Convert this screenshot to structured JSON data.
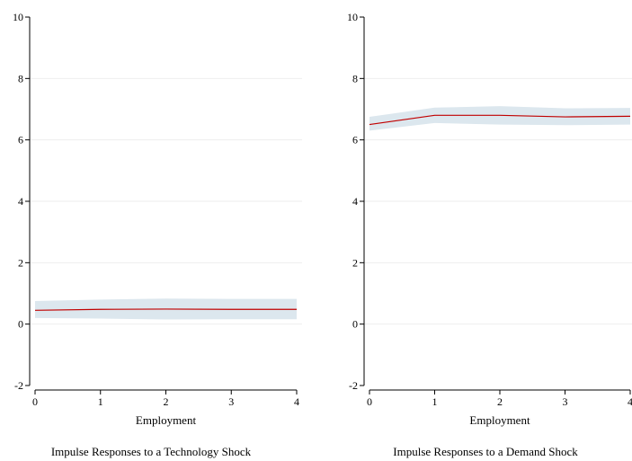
{
  "chart_data": [
    {
      "type": "line",
      "title": "Impulse Responses to a Technology Shock",
      "xlabel": "Employment",
      "ylabel": "",
      "xlim": [
        0,
        4
      ],
      "ylim": [
        -2,
        10
      ],
      "xticks": [
        "0",
        "1",
        "2",
        "3",
        "4"
      ],
      "yticks": [
        "-2",
        "0",
        "2",
        "4",
        "6",
        "8",
        "10"
      ],
      "grid": true,
      "x": [
        0,
        1,
        2,
        3,
        4
      ],
      "series": [
        {
          "name": "",
          "values": [
            0.45,
            0.48,
            0.49,
            0.48,
            0.48
          ],
          "lower": [
            0.2,
            0.18,
            0.15,
            0.16,
            0.16
          ],
          "upper": [
            0.75,
            0.8,
            0.83,
            0.82,
            0.82
          ],
          "color": "#c00000",
          "band_color": "#dce7ee"
        }
      ]
    },
    {
      "type": "line",
      "title": "Impulse Responses to a Demand Shock",
      "xlabel": "Employment",
      "ylabel": "",
      "xlim": [
        0,
        4
      ],
      "ylim": [
        -2,
        10
      ],
      "xticks": [
        "0",
        "1",
        "2",
        "3",
        "4"
      ],
      "yticks": [
        "-2",
        "0",
        "2",
        "4",
        "6",
        "8",
        "10"
      ],
      "grid": true,
      "x": [
        0,
        1,
        2,
        3,
        4
      ],
      "series": [
        {
          "name": "",
          "values": [
            6.5,
            6.8,
            6.8,
            6.75,
            6.77
          ],
          "lower": [
            6.3,
            6.55,
            6.5,
            6.48,
            6.5
          ],
          "upper": [
            6.75,
            7.05,
            7.1,
            7.03,
            7.04
          ],
          "color": "#c00000",
          "band_color": "#dce7ee"
        }
      ]
    }
  ]
}
